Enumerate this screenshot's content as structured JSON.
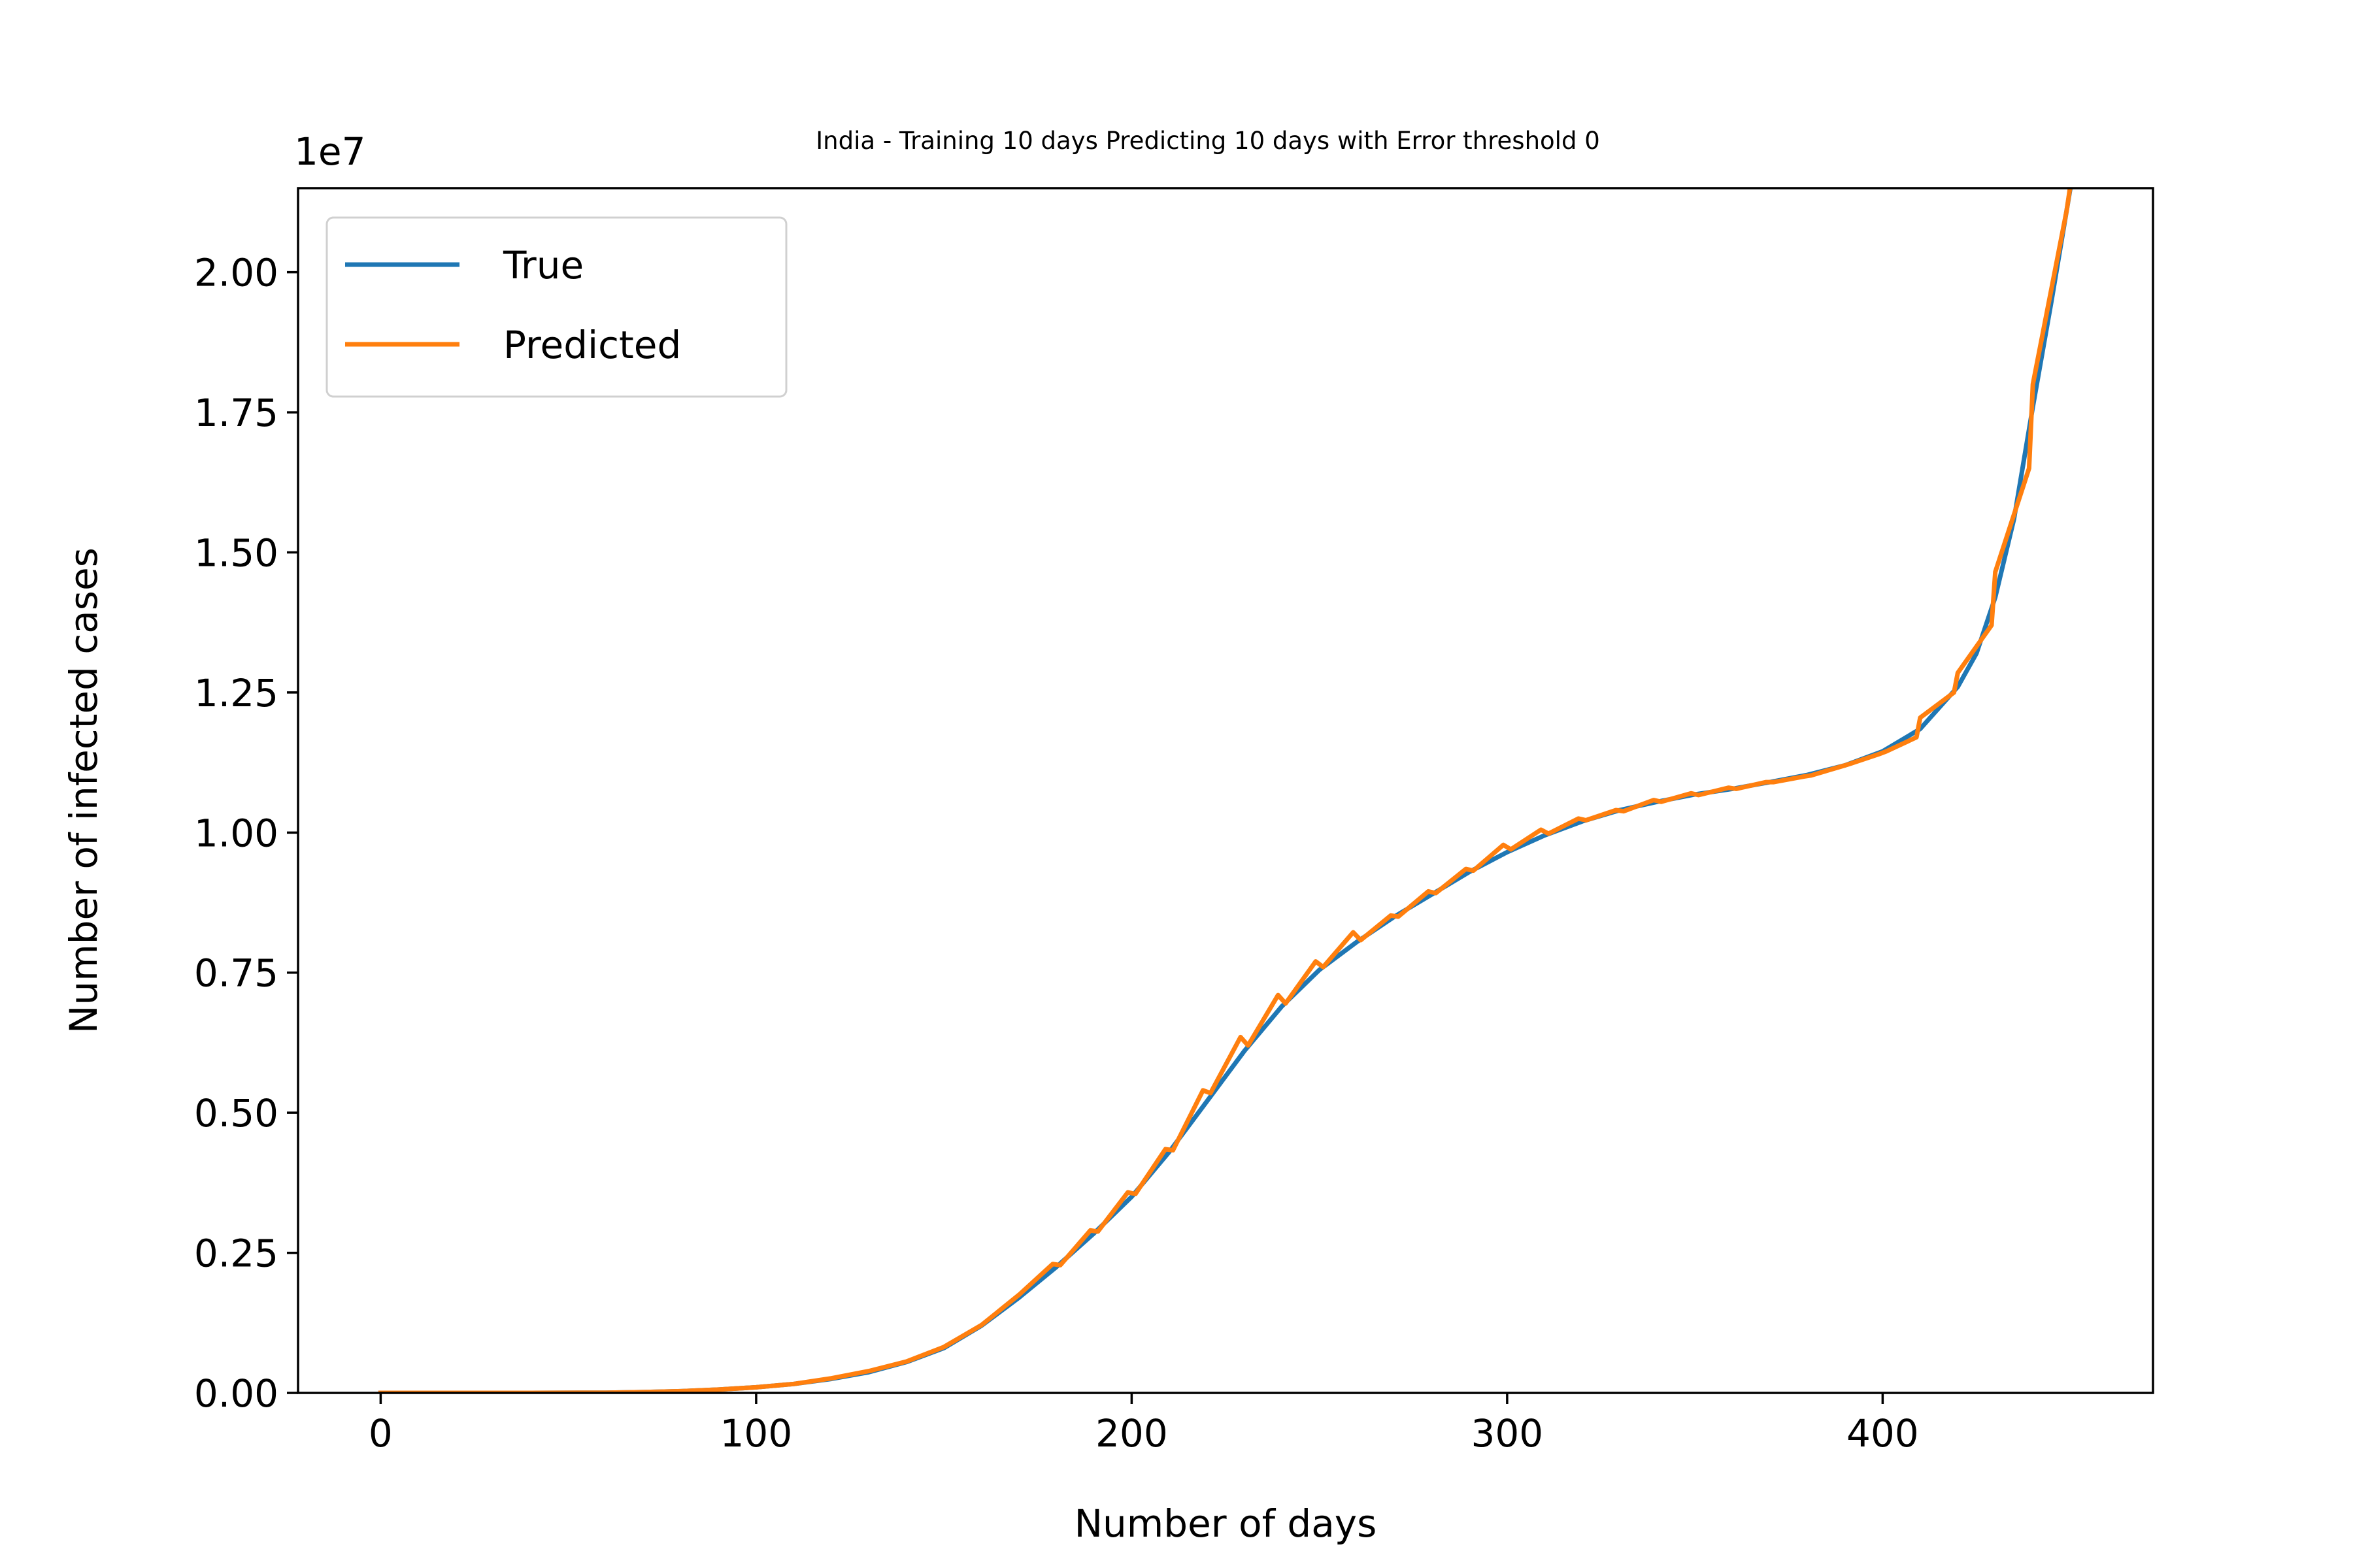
{
  "chart_data": {
    "type": "line",
    "title": "India - Training 10 days Predicting 10 days with Error threshold 0",
    "xlabel": "Number of days",
    "ylabel": "Number of infected cases",
    "y_multiplier_label": "1e7",
    "xlim": [
      -22,
      472
    ],
    "ylim": [
      0,
      2.15
    ],
    "x_ticks": [
      0,
      100,
      200,
      300,
      400
    ],
    "x_tick_labels": [
      "0",
      "100",
      "200",
      "300",
      "400"
    ],
    "y_ticks": [
      0,
      0.25,
      0.5,
      0.75,
      1.0,
      1.25,
      1.5,
      1.75,
      2.0
    ],
    "y_tick_labels": [
      "0.00",
      "0.25",
      "0.50",
      "0.75",
      "1.00",
      "1.25",
      "1.50",
      "1.75",
      "2.00"
    ],
    "grid": false,
    "legend_position": "top-left",
    "series": [
      {
        "name": "True",
        "color": "#1f77b4",
        "points": [
          [
            0,
            0.0
          ],
          [
            20,
            0.0
          ],
          [
            40,
            0.0
          ],
          [
            60,
            0.0004
          ],
          [
            70,
            0.0015
          ],
          [
            80,
            0.003
          ],
          [
            90,
            0.006
          ],
          [
            100,
            0.01
          ],
          [
            110,
            0.016
          ],
          [
            120,
            0.025
          ],
          [
            130,
            0.037
          ],
          [
            140,
            0.055
          ],
          [
            150,
            0.08
          ],
          [
            160,
            0.12
          ],
          [
            170,
            0.17
          ],
          [
            180,
            0.225
          ],
          [
            190,
            0.285
          ],
          [
            200,
            0.35
          ],
          [
            210,
            0.43
          ],
          [
            220,
            0.52
          ],
          [
            230,
            0.61
          ],
          [
            240,
            0.69
          ],
          [
            250,
            0.755
          ],
          [
            260,
            0.805
          ],
          [
            270,
            0.85
          ],
          [
            280,
            0.89
          ],
          [
            290,
            0.93
          ],
          [
            300,
            0.965
          ],
          [
            310,
            0.995
          ],
          [
            320,
            1.02
          ],
          [
            330,
            1.04
          ],
          [
            340,
            1.055
          ],
          [
            350,
            1.068
          ],
          [
            360,
            1.078
          ],
          [
            370,
            1.09
          ],
          [
            380,
            1.103
          ],
          [
            390,
            1.12
          ],
          [
            400,
            1.145
          ],
          [
            410,
            1.185
          ],
          [
            420,
            1.26
          ],
          [
            425,
            1.32
          ],
          [
            430,
            1.42
          ],
          [
            435,
            1.56
          ],
          [
            440,
            1.76
          ],
          [
            445,
            1.95
          ],
          [
            450,
            2.15
          ]
        ]
      },
      {
        "name": "Predicted",
        "color": "#ff7f0e",
        "points": [
          [
            0,
            0.0
          ],
          [
            20,
            0.0
          ],
          [
            40,
            0.0
          ],
          [
            60,
            0.0004
          ],
          [
            70,
            0.0015
          ],
          [
            80,
            0.003
          ],
          [
            90,
            0.006
          ],
          [
            100,
            0.01
          ],
          [
            110,
            0.016
          ],
          [
            120,
            0.026
          ],
          [
            130,
            0.039
          ],
          [
            140,
            0.056
          ],
          [
            150,
            0.082
          ],
          [
            160,
            0.121
          ],
          [
            170,
            0.175
          ],
          [
            179,
            0.23
          ],
          [
            181,
            0.228
          ],
          [
            189,
            0.29
          ],
          [
            191,
            0.288
          ],
          [
            199,
            0.358
          ],
          [
            201,
            0.355
          ],
          [
            209,
            0.435
          ],
          [
            211,
            0.433
          ],
          [
            219,
            0.54
          ],
          [
            221,
            0.535
          ],
          [
            229,
            0.635
          ],
          [
            231,
            0.62
          ],
          [
            239,
            0.71
          ],
          [
            241,
            0.695
          ],
          [
            249,
            0.77
          ],
          [
            251,
            0.76
          ],
          [
            259,
            0.822
          ],
          [
            261,
            0.808
          ],
          [
            269,
            0.852
          ],
          [
            271,
            0.85
          ],
          [
            279,
            0.895
          ],
          [
            281,
            0.892
          ],
          [
            289,
            0.935
          ],
          [
            291,
            0.932
          ],
          [
            299,
            0.978
          ],
          [
            301,
            0.97
          ],
          [
            309,
            1.005
          ],
          [
            311,
            0.998
          ],
          [
            319,
            1.025
          ],
          [
            321,
            1.022
          ],
          [
            329,
            1.04
          ],
          [
            331,
            1.038
          ],
          [
            339,
            1.058
          ],
          [
            341,
            1.055
          ],
          [
            349,
            1.07
          ],
          [
            351,
            1.067
          ],
          [
            359,
            1.08
          ],
          [
            361,
            1.078
          ],
          [
            369,
            1.09
          ],
          [
            371,
            1.09
          ],
          [
            379,
            1.1
          ],
          [
            381,
            1.102
          ],
          [
            389,
            1.118
          ],
          [
            391,
            1.122
          ],
          [
            399,
            1.14
          ],
          [
            401,
            1.145
          ],
          [
            409,
            1.17
          ],
          [
            410,
            1.205
          ],
          [
            419,
            1.25
          ],
          [
            420,
            1.285
          ],
          [
            429,
            1.37
          ],
          [
            430,
            1.465
          ],
          [
            439,
            1.65
          ],
          [
            440,
            1.8
          ],
          [
            449,
            2.11
          ],
          [
            451,
            2.2
          ]
        ]
      }
    ]
  }
}
